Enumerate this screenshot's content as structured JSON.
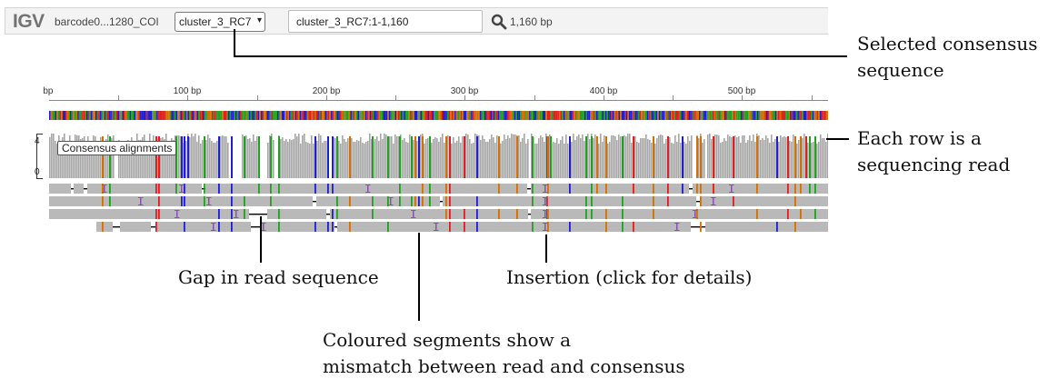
{
  "navbar": {
    "logo": "IGV",
    "genome": "barcode0...1280_COI",
    "sequence_select": "cluster_3_RC7",
    "locus": "cluster_3_RC7:1-1,160",
    "window_size": "1,160 bp",
    "search_icon": "search-icon",
    "dropdown_icon": "chevron-down-icon"
  },
  "ruler": {
    "first_label": "bp",
    "labels": [
      "100 bp",
      "200 bp",
      "300 bp",
      "400 bp",
      "500 bp"
    ]
  },
  "coverage": {
    "max": "4",
    "min": "0",
    "track_name": "Consensus alignments"
  },
  "annotations": {
    "selected_consensus": [
      "Selected consensus",
      "sequence"
    ],
    "each_row": [
      "Each row is a",
      "sequencing read"
    ],
    "gap": "Gap in read sequence",
    "insertion": "Insertion (click for details)",
    "coloured": [
      "Coloured segments show a",
      "mismatch between read and consensus"
    ]
  },
  "colors": {
    "A": "#22a022",
    "C": "#1f1fcf",
    "G": "#d17105",
    "T": "#e01f1f",
    "read": "#b9b9b9",
    "coverage": "#a6a6a6",
    "insertion": "#8a4fb8"
  }
}
